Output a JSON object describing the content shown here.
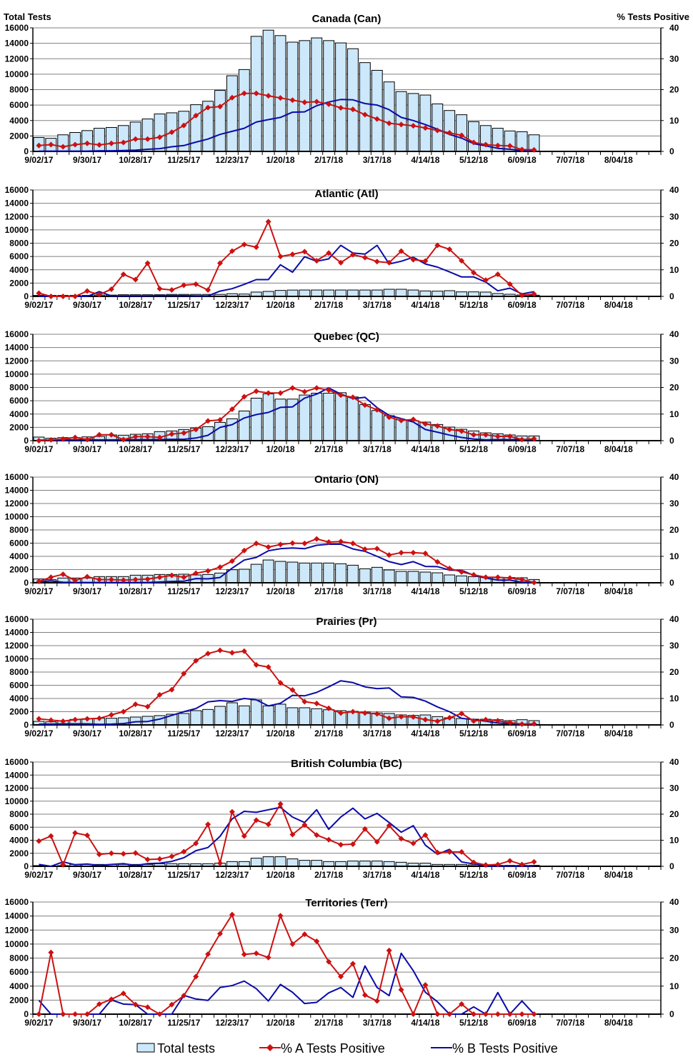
{
  "header": {
    "left_axis_title": "Total Tests",
    "right_axis_title": "% Tests Positive"
  },
  "legend": {
    "total": "Total tests",
    "a": "% A Tests Positive",
    "b": "% B Tests Positive"
  },
  "colors": {
    "bar_fill": "#cce8fa",
    "bar_edge": "#000000",
    "series_a": "#cc1111",
    "series_b": "#0a0aa8",
    "grid": "#808080"
  },
  "chart_data": {
    "type": "bar+line",
    "x_tick_labels": [
      "9/02/17",
      "9/30/17",
      "10/28/17",
      "11/25/17",
      "12/23/17",
      "1/20/18",
      "2/17/18",
      "3/17/18",
      "4/14/18",
      "5/12/18",
      "6/09/18",
      "7/07/18",
      "8/04/18"
    ],
    "x_weeks_total": 52,
    "left_ylim": [
      0,
      16000
    ],
    "left_ticks": [
      0,
      2000,
      4000,
      6000,
      8000,
      10000,
      12000,
      14000,
      16000
    ],
    "right_ylim": [
      0,
      40
    ],
    "right_ticks": [
      0,
      10,
      20,
      30,
      40
    ],
    "grid": true,
    "legend_placement": "bottom",
    "panels": [
      {
        "title": "Canada (Can)",
        "total": [
          1800,
          1700,
          2150,
          2450,
          2700,
          3000,
          3100,
          3350,
          3800,
          4200,
          4850,
          5000,
          5200,
          6050,
          6500,
          7900,
          9800,
          10600,
          14900,
          15700,
          15000,
          14150,
          14350,
          14700,
          14350,
          14050,
          13300,
          11500,
          10500,
          9000,
          7750,
          7500,
          7300,
          6150,
          5300,
          4750,
          3850,
          3350,
          3000,
          2650,
          2550,
          2150
        ],
        "pct_a": [
          1.9,
          2.2,
          1.5,
          2.2,
          2.6,
          2.1,
          2.6,
          2.9,
          4.0,
          4.0,
          4.6,
          6.2,
          8.4,
          11.6,
          14.2,
          14.5,
          17.4,
          18.8,
          18.8,
          18.0,
          17.3,
          16.6,
          15.9,
          16.1,
          15.3,
          14.1,
          13.6,
          11.9,
          10.5,
          9.1,
          8.7,
          8.3,
          7.6,
          6.8,
          6.0,
          5.2,
          2.9,
          2.2,
          1.9,
          1.8,
          0.6,
          0.5
        ],
        "pct_b": [
          0.1,
          0.1,
          0.1,
          0.1,
          0.1,
          0.2,
          0.2,
          0.3,
          0.4,
          0.7,
          0.9,
          1.5,
          1.9,
          3.0,
          4.0,
          5.5,
          6.5,
          7.5,
          9.5,
          10.3,
          11.0,
          12.7,
          12.8,
          14.8,
          16.0,
          16.8,
          16.7,
          15.5,
          15.0,
          13.5,
          11.0,
          10.0,
          8.7,
          7.2,
          5.5,
          4.3,
          2.5,
          1.8,
          1.0,
          0.7,
          0.3,
          0.2
        ]
      },
      {
        "title": "Atlantic (Atl)",
        "total": [
          150,
          150,
          150,
          150,
          150,
          200,
          200,
          250,
          250,
          250,
          250,
          300,
          300,
          300,
          300,
          300,
          400,
          350,
          650,
          750,
          900,
          950,
          960,
          960,
          960,
          960,
          960,
          960,
          960,
          1070,
          1070,
          960,
          820,
          790,
          860,
          680,
          680,
          650,
          430,
          320,
          210,
          180
        ],
        "pct_a": [
          1.2,
          0,
          0,
          0,
          2.0,
          0.7,
          2.7,
          8.3,
          6.3,
          12.5,
          2.9,
          2.4,
          4.2,
          4.6,
          2.4,
          12.5,
          17,
          19.5,
          18.5,
          28.1,
          15,
          15.8,
          16.8,
          13.4,
          16.3,
          12.7,
          15.7,
          14.6,
          13.1,
          12.7,
          17,
          13.8,
          13.3,
          19.2,
          17.7,
          13.4,
          8.9,
          6.1,
          8.3,
          4.6,
          0.4,
          0.9
        ],
        "pct_b": [
          0,
          0,
          0,
          0,
          0,
          1.8,
          0.2,
          0.2,
          0.2,
          0.2,
          0.3,
          0.3,
          0.3,
          0.2,
          0.2,
          2,
          2.9,
          4.5,
          6.3,
          6.3,
          11.9,
          9.1,
          14.9,
          13.2,
          14.1,
          19.2,
          16.3,
          15.9,
          19.2,
          12.2,
          13.2,
          14.7,
          12.2,
          11,
          9.2,
          7.3,
          7.3,
          5.4,
          2.1,
          3.1,
          0.9,
          1.8
        ]
      },
      {
        "title": "Quebec (QC)",
        "total": [
          540,
          360,
          460,
          460,
          570,
          640,
          860,
          820,
          960,
          1040,
          1360,
          1460,
          1680,
          1890,
          2100,
          2750,
          3290,
          4460,
          6390,
          7040,
          6250,
          6250,
          6860,
          7140,
          7140,
          7210,
          6570,
          5430,
          4540,
          3750,
          3140,
          3000,
          2790,
          2430,
          2040,
          1710,
          1460,
          1180,
          1040,
          860,
          710,
          710
        ],
        "pct_a": [
          0,
          0.3,
          0.6,
          1.2,
          0.4,
          2.2,
          2.2,
          0.4,
          1.5,
          1.5,
          1.2,
          2.5,
          2.9,
          4.2,
          7.4,
          7.8,
          11.8,
          16.5,
          18.6,
          17.9,
          17.9,
          19.8,
          18.4,
          19.8,
          19,
          17.1,
          16.3,
          13.4,
          11.6,
          8.8,
          7.6,
          8,
          6.3,
          5.5,
          4.2,
          3.6,
          2.2,
          2.2,
          1.6,
          1.6,
          0.4,
          0.7
        ],
        "pct_b": [
          0.2,
          0.2,
          0.2,
          0.3,
          0.3,
          0.3,
          0.3,
          0.3,
          0.4,
          0.4,
          0.4,
          0.5,
          0.5,
          1.0,
          2.0,
          5.0,
          6.0,
          8.5,
          9.8,
          10.6,
          12.5,
          12.7,
          16,
          17.5,
          19.8,
          17.5,
          15.8,
          16.3,
          12.4,
          9.5,
          8.3,
          7,
          4.2,
          3.2,
          2.1,
          1.2,
          0.6,
          0.3,
          0.4,
          0.4,
          0.4,
          0.4
        ]
      },
      {
        "title": "Ontario (ON)",
        "total": [
          580,
          470,
          720,
          720,
          720,
          940,
          940,
          940,
          1150,
          1150,
          1260,
          1260,
          1300,
          1190,
          1260,
          1470,
          1980,
          2050,
          2800,
          3450,
          3240,
          3130,
          2990,
          2990,
          2990,
          2880,
          2660,
          2120,
          2340,
          1940,
          1730,
          1730,
          1620,
          1510,
          1190,
          1040,
          940,
          860,
          790,
          790,
          760,
          500
        ],
        "pct_a": [
          0.5,
          2.1,
          3.2,
          0.9,
          2.3,
          1.2,
          1.2,
          1,
          1.2,
          1.4,
          2.1,
          2.8,
          2.1,
          3.6,
          4.5,
          5.9,
          8.2,
          12.2,
          14.9,
          13.5,
          14.5,
          15,
          14.9,
          16.6,
          15.4,
          15.6,
          14.9,
          12.7,
          12.9,
          10.5,
          11.4,
          11.4,
          11.1,
          7.9,
          5.4,
          4.1,
          3,
          2.1,
          2.1,
          1.8,
          1.2,
          0.1
        ],
        "pct_b": [
          0.3,
          0.7,
          0.2,
          0.1,
          0.1,
          0.1,
          0.1,
          0.1,
          0.1,
          0.1,
          0.3,
          0.5,
          0.6,
          1.6,
          1.5,
          2.0,
          5.5,
          8.6,
          9.6,
          12.1,
          12.9,
          13.2,
          12.9,
          14.2,
          14.6,
          14.6,
          12.8,
          11.9,
          10,
          8,
          6.9,
          8,
          6.2,
          6.1,
          4.8,
          4.7,
          2.8,
          1.8,
          1,
          1,
          0.2,
          0.2
        ]
      },
      {
        "title": "Prairies (Pr)",
        "total": [
          540,
          470,
          610,
          830,
          940,
          1010,
          1010,
          1080,
          1190,
          1300,
          1410,
          1620,
          1730,
          2160,
          2340,
          2810,
          3350,
          2880,
          3780,
          2880,
          3140,
          2600,
          2600,
          2450,
          2300,
          2160,
          2050,
          1950,
          1800,
          1730,
          1510,
          1440,
          1510,
          1260,
          1080,
          970,
          860,
          860,
          790,
          650,
          790,
          650
        ],
        "pct_a": [
          2.3,
          1.8,
          1.4,
          2,
          2.3,
          2.5,
          3.8,
          5,
          7.8,
          6.9,
          11.4,
          13.3,
          19.4,
          24.3,
          27,
          28.2,
          27.3,
          27.9,
          22.7,
          21.9,
          15.9,
          13.2,
          8.8,
          8.1,
          6.3,
          4.5,
          5,
          4.5,
          4.2,
          2.5,
          3.1,
          3,
          2,
          1.4,
          2.7,
          4.3,
          1.5,
          2,
          1.6,
          0.9,
          0.3,
          0.4
        ],
        "pct_b": [
          0.3,
          0.3,
          0.4,
          0.4,
          0.4,
          0.2,
          0.3,
          0.5,
          1.2,
          1.3,
          2.2,
          3.6,
          5,
          6.2,
          8.7,
          9.2,
          8.9,
          10,
          9.5,
          7.2,
          8.2,
          11.2,
          11,
          12.3,
          14.4,
          16.7,
          16,
          14.4,
          13.7,
          14,
          10.6,
          10.4,
          9,
          6.8,
          5,
          2.5,
          2,
          1.4,
          0.7,
          0.5,
          0.3,
          0.3
        ]
      },
      {
        "title": "British Columbia (BC)",
        "total": [
          110,
          0,
          110,
          290,
          290,
          290,
          290,
          290,
          290,
          290,
          400,
          400,
          400,
          400,
          400,
          480,
          730,
          730,
          1250,
          1470,
          1470,
          1140,
          920,
          920,
          730,
          730,
          810,
          810,
          810,
          730,
          620,
          480,
          480,
          290,
          290,
          290,
          220,
          150,
          150,
          150,
          150,
          150
        ],
        "pct_a": [
          9.7,
          11.6,
          0.6,
          12.8,
          11.9,
          4.6,
          5,
          4.8,
          5.1,
          2.6,
          2.8,
          3.8,
          5.6,
          8.8,
          16.1,
          1.2,
          20.9,
          11.6,
          17.7,
          16.1,
          23.9,
          12.2,
          15.9,
          12,
          10.2,
          8.3,
          8.5,
          14.3,
          9.4,
          15.6,
          10.6,
          8.8,
          12,
          5.3,
          5.5,
          5.5,
          1.5,
          0.5,
          0.7,
          2.1,
          0.7,
          1.7
        ],
        "pct_b": [
          0.7,
          0,
          1.7,
          0.6,
          0.9,
          0.3,
          0.7,
          1,
          0.3,
          1,
          1.2,
          1.9,
          3.3,
          6,
          7.2,
          11.5,
          18.2,
          21.1,
          20.7,
          21.7,
          22.6,
          18.9,
          16.8,
          21.7,
          14.2,
          18.9,
          22.3,
          18.2,
          20.3,
          16.8,
          13.1,
          15.6,
          8.1,
          4.6,
          6.5,
          1.7,
          0.9,
          0.1,
          0.1,
          0.1,
          0.1,
          0.1
        ]
      },
      {
        "title": "Territories (Terr)",
        "total": [
          0,
          0,
          0,
          0,
          0,
          0,
          0,
          0,
          0,
          0,
          0,
          0,
          0,
          0,
          0,
          0,
          0,
          0,
          0,
          0,
          0,
          0,
          0,
          0,
          0,
          0,
          0,
          0,
          0,
          0,
          0,
          0,
          0,
          0,
          0,
          0,
          0,
          0,
          0,
          0,
          0,
          0
        ],
        "pct_a": [
          0,
          22,
          0,
          0,
          0,
          3.6,
          5.3,
          7.4,
          3.4,
          2.5,
          0,
          3.4,
          6.6,
          13.4,
          21.4,
          28.7,
          35.5,
          21.3,
          21.7,
          20.2,
          35.1,
          25,
          28.5,
          26,
          18.7,
          13.4,
          18,
          6.8,
          4.7,
          22.7,
          8.7,
          0,
          10.4,
          0,
          0,
          3.6,
          0,
          0,
          0,
          0,
          0,
          0
        ],
        "pct_b": [
          4.9,
          0,
          0,
          0,
          0,
          0,
          5.1,
          3.6,
          3.4,
          0,
          0,
          0,
          6.7,
          5.4,
          4.9,
          9.5,
          10.2,
          11.8,
          9.1,
          4.7,
          10.6,
          7.8,
          3.8,
          4.2,
          7.6,
          9.5,
          6,
          17.2,
          9.5,
          6.6,
          21.7,
          15.5,
          7.8,
          4.4,
          0,
          0,
          2.6,
          0,
          7.7,
          0,
          4.7,
          0
        ]
      }
    ]
  }
}
